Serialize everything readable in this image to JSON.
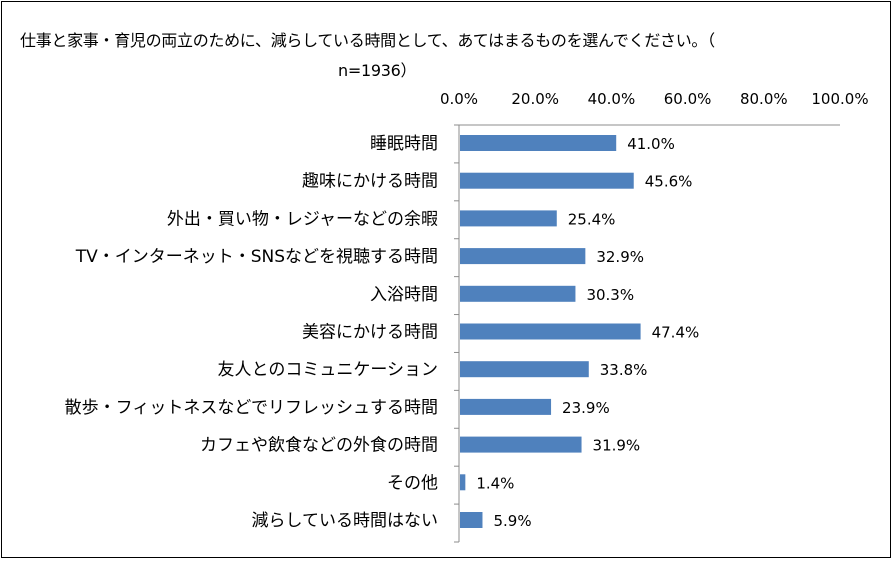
{
  "chart_data": {
    "type": "bar",
    "orientation": "horizontal",
    "title_line1": "仕事と家事・育児の両立のために、減らしている時間として、あてはまるものを選んでください。（",
    "title_line2": "n=1936）",
    "xlim": [
      0,
      100
    ],
    "xticks": [
      "0.0%",
      "20.0%",
      "40.0%",
      "60.0%",
      "80.0%",
      "100.0%"
    ],
    "xtick_values": [
      0,
      20,
      40,
      60,
      80,
      100
    ],
    "categories": [
      "睡眠時間",
      "趣味にかける時間",
      "外出・買い物・レジャーなどの余暇",
      "TV・インターネット・SNSなどを視聴する時間",
      "入浴時間",
      "美容にかける時間",
      "友人とのコミュニケーション",
      "散歩・フィットネスなどでリフレッシュする時間",
      "カフェや飲食などの外食の時間",
      "その他",
      "減らしている時間はない"
    ],
    "values": [
      41.0,
      45.6,
      25.4,
      32.9,
      30.3,
      47.4,
      33.8,
      23.9,
      31.9,
      1.4,
      5.9
    ],
    "value_labels": [
      "41.0%",
      "45.6%",
      "25.4%",
      "32.9%",
      "30.3%",
      "47.4%",
      "33.8%",
      "23.9%",
      "31.9%",
      "1.4%",
      "5.9%"
    ],
    "bar_color": "#4f81bd",
    "axis_position": "top",
    "grid": false
  }
}
